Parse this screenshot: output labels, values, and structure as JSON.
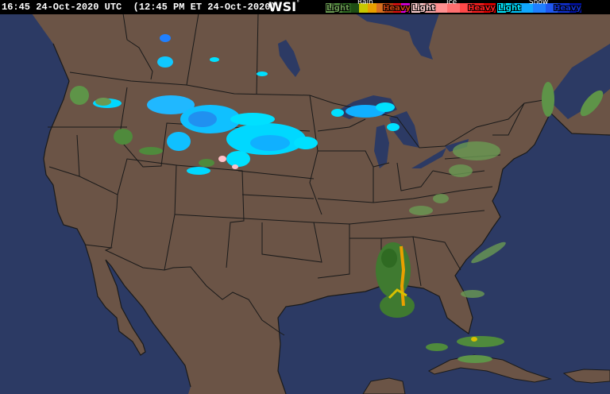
{
  "header": {
    "timestamp": "16:45 24-Oct-2020 UTC  (12:45 PM ET 24-Oct-2020)",
    "logo": "WSI",
    "logo_mark": "°"
  },
  "legend": {
    "rain": {
      "title": "Rain",
      "light": "Light",
      "heavy": "Heavy",
      "colors": [
        "#6a9a52",
        "#4f8a3c",
        "#2f6a22",
        "#1e4e14",
        "#c8c800",
        "#e8a000",
        "#d87020",
        "#c04010",
        "#e01010",
        "#e000e0"
      ]
    },
    "ice": {
      "title": "Ice",
      "light": "Light",
      "heavy": "Heavy",
      "colors": [
        "#ffd0d0",
        "#ffb0b0",
        "#ff9090",
        "#ff7070",
        "#ff4848",
        "#ff2020",
        "#e80000"
      ]
    },
    "snow": {
      "title": "Snow",
      "light": "Light",
      "heavy": "Heavy",
      "colors": [
        "#00e8ff",
        "#00c8ff",
        "#10a8ff",
        "#2080ff",
        "#2058f0",
        "#1030d0",
        "#0010a0"
      ]
    }
  },
  "map": {
    "land_color": "#6b5446",
    "water_color": "#2c3a64",
    "border_color": "#1a1a1a"
  }
}
